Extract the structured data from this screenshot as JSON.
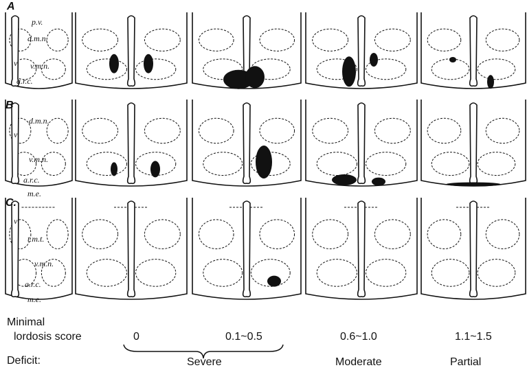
{
  "rows": [
    {
      "label": "A",
      "annotations": [
        "p.v.",
        "d.m.n.",
        "v",
        "v.m.n.",
        "a.r.c."
      ]
    },
    {
      "label": "B",
      "annotations": [
        "d.m.n.",
        "v",
        "v.m.n.",
        "a.r.c.",
        "m.e."
      ]
    },
    {
      "label": "C.",
      "annotations": [
        "v",
        "t.m.t.",
        "v.m.n.",
        "a.r.c.",
        "m.e."
      ]
    }
  ],
  "score_label": [
    "Minimal",
    "lordosis score"
  ],
  "scores": [
    "0",
    "0.1~0.5",
    "0.6~1.0",
    "1.1~1.5"
  ],
  "deficit_label": "Deficit:",
  "deficits": [
    "Severe",
    "Moderate",
    "Partial"
  ]
}
